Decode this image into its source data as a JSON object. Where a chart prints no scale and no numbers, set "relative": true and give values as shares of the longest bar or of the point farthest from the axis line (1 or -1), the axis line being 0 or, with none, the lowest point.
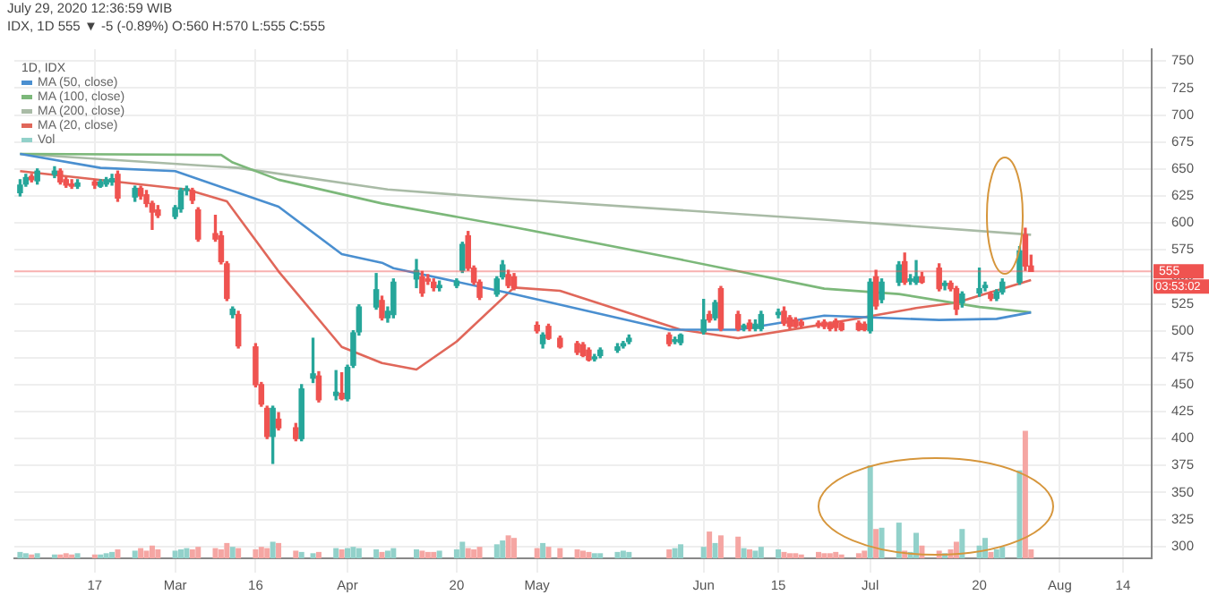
{
  "chart_data": [
    {
      "type": "candlestick",
      "title": "July 29, 2020 12:36:59 WIB",
      "subtitle": "IDX, 1D 555 ▼ -5 (-0.89%) O:560 H:570 L:555 C:555",
      "legend_title": "1D, IDX",
      "x": [
        "2020-02-04",
        "2020-02-05",
        "2020-02-06",
        "2020-02-07",
        "2020-02-10",
        "2020-02-11",
        "2020-02-12",
        "2020-02-13",
        "2020-02-14",
        "2020-02-17",
        "2020-02-18",
        "2020-02-19",
        "2020-02-20",
        "2020-02-21",
        "2020-02-24",
        "2020-02-25",
        "2020-02-26",
        "2020-02-27",
        "2020-02-28",
        "2020-03-02",
        "2020-03-03",
        "2020-03-04",
        "2020-03-05",
        "2020-03-06",
        "2020-03-09",
        "2020-03-10",
        "2020-03-11",
        "2020-03-12",
        "2020-03-13",
        "2020-03-16",
        "2020-03-17",
        "2020-03-18",
        "2020-03-19",
        "2020-03-20",
        "2020-03-23",
        "2020-03-24",
        "2020-03-26",
        "2020-03-27",
        "2020-03-30",
        "2020-03-31",
        "2020-04-01",
        "2020-04-02",
        "2020-04-03",
        "2020-04-06",
        "2020-04-07",
        "2020-04-08",
        "2020-04-09",
        "2020-04-13",
        "2020-04-14",
        "2020-04-15",
        "2020-04-16",
        "2020-04-17",
        "2020-04-20",
        "2020-04-21",
        "2020-04-22",
        "2020-04-23",
        "2020-04-24",
        "2020-04-27",
        "2020-04-28",
        "2020-04-29",
        "2020-04-30",
        "2020-05-04",
        "2020-05-05",
        "2020-05-06",
        "2020-05-08",
        "2020-05-11",
        "2020-05-12",
        "2020-05-13",
        "2020-05-14",
        "2020-05-15",
        "2020-05-18",
        "2020-05-19",
        "2020-05-20",
        "2020-05-27",
        "2020-05-28",
        "2020-05-29",
        "2020-06-02",
        "2020-06-03",
        "2020-06-04",
        "2020-06-05",
        "2020-06-08",
        "2020-06-09",
        "2020-06-10",
        "2020-06-11",
        "2020-06-12",
        "2020-06-15",
        "2020-06-16",
        "2020-06-17",
        "2020-06-18",
        "2020-06-19",
        "2020-06-22",
        "2020-06-23",
        "2020-06-24",
        "2020-06-25",
        "2020-06-26",
        "2020-06-29",
        "2020-06-30",
        "2020-07-01",
        "2020-07-02",
        "2020-07-03",
        "2020-07-06",
        "2020-07-07",
        "2020-07-08",
        "2020-07-09",
        "2020-07-10",
        "2020-07-13",
        "2020-07-14",
        "2020-07-15",
        "2020-07-16",
        "2020-07-17",
        "2020-07-20",
        "2020-07-21",
        "2020-07-22",
        "2020-07-23",
        "2020-07-24",
        "2020-07-27",
        "2020-07-28",
        "2020-07-29"
      ],
      "ohlc": [
        [
          628,
          640,
          625,
          635
        ],
        [
          636,
          645,
          634,
          642
        ],
        [
          643,
          645,
          638,
          640
        ],
        [
          639,
          650,
          636,
          648
        ],
        [
          645,
          652,
          642,
          648
        ],
        [
          648,
          650,
          636,
          638
        ],
        [
          640,
          642,
          633,
          635
        ],
        [
          636,
          640,
          632,
          634
        ],
        [
          634,
          640,
          632,
          637
        ],
        [
          638,
          640,
          632,
          635
        ],
        [
          634,
          640,
          633,
          638
        ],
        [
          636,
          642,
          634,
          640
        ],
        [
          638,
          645,
          635,
          641
        ],
        [
          645,
          648,
          620,
          623
        ],
        [
          624,
          634,
          620,
          632
        ],
        [
          632,
          634,
          622,
          625
        ],
        [
          626,
          630,
          615,
          618
        ],
        [
          618,
          620,
          594,
          610
        ],
        [
          612,
          616,
          605,
          607
        ],
        [
          606,
          616,
          604,
          614
        ],
        [
          613,
          632,
          610,
          630
        ],
        [
          630,
          634,
          626,
          631
        ],
        [
          630,
          632,
          618,
          621
        ],
        [
          612,
          614,
          583,
          585
        ],
        [
          590,
          607,
          583,
          585
        ],
        [
          588,
          592,
          562,
          564
        ],
        [
          562,
          564,
          528,
          530
        ],
        [
          515,
          522,
          512,
          520
        ],
        [
          515,
          518,
          484,
          486
        ],
        [
          485,
          488,
          448,
          450
        ],
        [
          450,
          452,
          430,
          432
        ],
        [
          428,
          430,
          400,
          402
        ],
        [
          402,
          430,
          377,
          428
        ],
        [
          418,
          424,
          408,
          410
        ],
        [
          410,
          414,
          398,
          400
        ],
        [
          400,
          450,
          398,
          446
        ],
        [
          456,
          493,
          452,
          460
        ],
        [
          458,
          462,
          434,
          436
        ],
        [
          440,
          463,
          436,
          443
        ],
        [
          442,
          461,
          436,
          437
        ],
        [
          437,
          468,
          435,
          466
        ],
        [
          468,
          500,
          466,
          498
        ],
        [
          499,
          524,
          496,
          522
        ],
        [
          522,
          553,
          520,
          538
        ],
        [
          528,
          532,
          510,
          512
        ],
        [
          512,
          522,
          508,
          518
        ],
        [
          515,
          548,
          512,
          545
        ],
        [
          548,
          566,
          540,
          556
        ],
        [
          550,
          555,
          532,
          535
        ],
        [
          548,
          552,
          543,
          546
        ],
        [
          545,
          548,
          537,
          540
        ],
        [
          540,
          546,
          537,
          542
        ],
        [
          542,
          548,
          540,
          546
        ],
        [
          556,
          582,
          554,
          580
        ],
        [
          588,
          592,
          556,
          558
        ],
        [
          558,
          560,
          543,
          545
        ],
        [
          545,
          547,
          529,
          531
        ],
        [
          534,
          550,
          532,
          548
        ],
        [
          550,
          565,
          548,
          561
        ],
        [
          552,
          556,
          540,
          542
        ],
        [
          550,
          553,
          538,
          540
        ],
        [
          505,
          508,
          498,
          500
        ],
        [
          488,
          498,
          484,
          496
        ],
        [
          504,
          506,
          492,
          493
        ],
        [
          493,
          495,
          484,
          485
        ],
        [
          488,
          490,
          478,
          480
        ],
        [
          487,
          489,
          476,
          477
        ],
        [
          482,
          484,
          472,
          473
        ],
        [
          474,
          478,
          472,
          475
        ],
        [
          477,
          484,
          475,
          482
        ],
        [
          482,
          488,
          480,
          485
        ],
        [
          486,
          490,
          484,
          488
        ],
        [
          490,
          496,
          488,
          493
        ],
        [
          496,
          498,
          486,
          488
        ],
        [
          490,
          494,
          488,
          491
        ],
        [
          489,
          497,
          487,
          496
        ],
        [
          499,
          529,
          497,
          510
        ],
        [
          515,
          518,
          508,
          510
        ],
        [
          512,
          528,
          510,
          526
        ],
        [
          539,
          541,
          500,
          502
        ],
        [
          515,
          518,
          500,
          502
        ],
        [
          503,
          506,
          500,
          504
        ],
        [
          507,
          510,
          500,
          502
        ],
        [
          502,
          510,
          500,
          506
        ],
        [
          502,
          518,
          500,
          515
        ],
        [
          515,
          520,
          512,
          517
        ],
        [
          518,
          522,
          505,
          507
        ],
        [
          512,
          514,
          502,
          504
        ],
        [
          510,
          512,
          503,
          504
        ],
        [
          508,
          510,
          503,
          505
        ],
        [
          507,
          509,
          503,
          505
        ],
        [
          508,
          510,
          502,
          504
        ],
        [
          506,
          508,
          500,
          502
        ],
        [
          509,
          511,
          500,
          503
        ],
        [
          507,
          509,
          500,
          501
        ],
        [
          507,
          509,
          500,
          501
        ],
        [
          506,
          508,
          500,
          501
        ],
        [
          500,
          548,
          498,
          545
        ],
        [
          550,
          556,
          520,
          523
        ],
        [
          529,
          548,
          526,
          545
        ],
        [
          545,
          564,
          542,
          561
        ],
        [
          564,
          572,
          543,
          545
        ],
        [
          546,
          552,
          543,
          548
        ],
        [
          545,
          565,
          543,
          550
        ],
        [
          550,
          554,
          544,
          545
        ],
        [
          558,
          562,
          537,
          539
        ],
        [
          542,
          546,
          538,
          544
        ],
        [
          544,
          546,
          537,
          539
        ],
        [
          539,
          541,
          515,
          520
        ],
        [
          526,
          536,
          522,
          534
        ],
        [
          535,
          558,
          532,
          539
        ],
        [
          540,
          545,
          537,
          542
        ],
        [
          534,
          536,
          528,
          530
        ],
        [
          530,
          538,
          528,
          536
        ],
        [
          536,
          548,
          534,
          545
        ],
        [
          545,
          578,
          543,
          574
        ],
        [
          589,
          595,
          556,
          560
        ],
        [
          560,
          570,
          555,
          555
        ]
      ],
      "colors": [
        "#26a69a",
        "#26a69a",
        "#ef5350",
        "#26a69a",
        "#26a69a",
        "#ef5350",
        "#ef5350",
        "#ef5350",
        "#26a69a",
        "#ef5350",
        "#26a69a",
        "#26a69a",
        "#26a69a",
        "#ef5350",
        "#26a69a",
        "#ef5350",
        "#ef5350",
        "#ef5350",
        "#ef5350",
        "#26a69a",
        "#26a69a",
        "#26a69a",
        "#ef5350",
        "#ef5350",
        "#ef5350",
        "#ef5350",
        "#ef5350",
        "#26a69a",
        "#ef5350",
        "#ef5350",
        "#ef5350",
        "#ef5350",
        "#26a69a",
        "#ef5350",
        "#ef5350",
        "#26a69a",
        "#26a69a",
        "#ef5350",
        "#26a69a",
        "#ef5350",
        "#26a69a",
        "#26a69a",
        "#26a69a",
        "#26a69a",
        "#ef5350",
        "#26a69a",
        "#26a69a",
        "#26a69a",
        "#ef5350",
        "#ef5350",
        "#ef5350",
        "#26a69a",
        "#26a69a",
        "#26a69a",
        "#ef5350",
        "#ef5350",
        "#ef5350",
        "#26a69a",
        "#26a69a",
        "#ef5350",
        "#ef5350",
        "#ef5350",
        "#26a69a",
        "#ef5350",
        "#ef5350",
        "#ef5350",
        "#ef5350",
        "#ef5350",
        "#26a69a",
        "#26a69a",
        "#26a69a",
        "#26a69a",
        "#26a69a",
        "#ef5350",
        "#26a69a",
        "#26a69a",
        "#26a69a",
        "#ef5350",
        "#26a69a",
        "#ef5350",
        "#ef5350",
        "#26a69a",
        "#ef5350",
        "#26a69a",
        "#26a69a",
        "#26a69a",
        "#ef5350",
        "#ef5350",
        "#ef5350",
        "#ef5350",
        "#ef5350",
        "#ef5350",
        "#ef5350",
        "#ef5350",
        "#ef5350",
        "#ef5350",
        "#ef5350",
        "#26a69a",
        "#ef5350",
        "#26a69a",
        "#26a69a",
        "#ef5350",
        "#26a69a",
        "#26a69a",
        "#ef5350",
        "#ef5350",
        "#26a69a",
        "#ef5350",
        "#ef5350",
        "#26a69a",
        "#26a69a",
        "#26a69a",
        "#ef5350",
        "#26a69a",
        "#26a69a",
        "#26a69a",
        "#ef5350",
        "#ef5350"
      ],
      "series": [
        {
          "type": "line",
          "name": "MA (50, close)",
          "color": "#4a8fd0",
          "x": [
            "2020-02-04",
            "2020-02-18",
            "2020-03-02",
            "2020-03-20",
            "2020-03-31",
            "2020-04-07",
            "2020-04-09",
            "2020-04-30",
            "2020-05-27",
            "2020-06-08",
            "2020-06-23",
            "2020-07-13",
            "2020-07-23",
            "2020-07-29"
          ],
          "values": [
            664,
            651,
            648,
            615,
            571,
            563,
            558,
            534,
            501,
            501,
            514,
            510,
            511,
            517
          ]
        },
        {
          "type": "line",
          "name": "MA (100, close)",
          "color": "#7cb87a",
          "x": [
            "2020-02-04",
            "2020-03-10",
            "2020-03-12",
            "2020-03-20",
            "2020-04-07",
            "2020-04-30",
            "2020-05-29",
            "2020-06-23",
            "2020-07-06",
            "2020-07-20",
            "2020-07-29"
          ],
          "values": [
            664,
            663,
            656,
            640,
            618,
            596,
            566,
            539,
            534,
            522,
            517
          ]
        },
        {
          "type": "line",
          "name": "MA (200, close)",
          "color": "#a9bba6",
          "x": [
            "2020-02-04",
            "2020-03-13",
            "2020-04-08",
            "2020-04-30",
            "2020-06-23",
            "2020-07-29"
          ],
          "values": [
            664,
            651,
            631,
            622,
            603,
            589
          ]
        },
        {
          "type": "line",
          "name": "MA (20, close)",
          "color": "#e0675a",
          "x": [
            "2020-02-04",
            "2020-03-04",
            "2020-03-11",
            "2020-03-20",
            "2020-03-31",
            "2020-04-07",
            "2020-04-13",
            "2020-04-20",
            "2020-04-30",
            "2020-05-08",
            "2020-05-29",
            "2020-06-08",
            "2020-06-23",
            "2020-07-09",
            "2020-07-16",
            "2020-07-29"
          ],
          "values": [
            648,
            631,
            620,
            555,
            485,
            470,
            464,
            490,
            540,
            537,
            501,
            493,
            506,
            521,
            526,
            547
          ]
        }
      ],
      "xlim": [
        "2020-02-03",
        "2020-08-19"
      ],
      "xticks": [
        {
          "value": "2020-02-17",
          "label": "17"
        },
        {
          "value": "2020-03-02",
          "label": "Mar"
        },
        {
          "value": "2020-03-16",
          "label": "16"
        },
        {
          "value": "2020-04-01",
          "label": "Apr"
        },
        {
          "value": "2020-04-20",
          "label": "20"
        },
        {
          "value": "2020-05-04",
          "label": "May"
        },
        {
          "value": "2020-06-02",
          "label": "Jun"
        },
        {
          "value": "2020-06-15",
          "label": "15"
        },
        {
          "value": "2020-07-01",
          "label": "Jul"
        },
        {
          "value": "2020-07-20",
          "label": "20"
        },
        {
          "value": "2020-08-03",
          "label": "Aug"
        },
        {
          "value": "2020-08-14",
          "label": "14"
        }
      ],
      "ylim": [
        289,
        761
      ],
      "yticks": [
        300,
        325,
        350,
        375,
        400,
        425,
        450,
        475,
        500,
        525,
        550,
        575,
        600,
        625,
        650,
        675,
        700,
        725,
        750
      ],
      "grid": true,
      "legend": "top left",
      "ref_lines": [
        {
          "axis": "y",
          "value": 555,
          "label": "555",
          "color": "#ef5350"
        }
      ],
      "annotations": [
        "03:53:02"
      ]
    },
    {
      "type": "bar",
      "relative": true,
      "legend": "top left",
      "x": [
        "2020-02-04",
        "2020-02-05",
        "2020-02-06",
        "2020-02-07",
        "2020-02-10",
        "2020-02-11",
        "2020-02-12",
        "2020-02-13",
        "2020-02-14",
        "2020-02-17",
        "2020-02-18",
        "2020-02-19",
        "2020-02-20",
        "2020-02-21",
        "2020-02-24",
        "2020-02-25",
        "2020-02-26",
        "2020-02-27",
        "2020-02-28",
        "2020-03-02",
        "2020-03-03",
        "2020-03-04",
        "2020-03-05",
        "2020-03-06",
        "2020-03-09",
        "2020-03-10",
        "2020-03-11",
        "2020-03-12",
        "2020-03-13",
        "2020-03-16",
        "2020-03-17",
        "2020-03-18",
        "2020-03-19",
        "2020-03-20",
        "2020-03-23",
        "2020-03-24",
        "2020-03-26",
        "2020-03-27",
        "2020-03-30",
        "2020-03-31",
        "2020-04-01",
        "2020-04-02",
        "2020-04-03",
        "2020-04-06",
        "2020-04-07",
        "2020-04-08",
        "2020-04-09",
        "2020-04-13",
        "2020-04-14",
        "2020-04-15",
        "2020-04-16",
        "2020-04-17",
        "2020-04-20",
        "2020-04-21",
        "2020-04-22",
        "2020-04-23",
        "2020-04-24",
        "2020-04-27",
        "2020-04-28",
        "2020-04-29",
        "2020-04-30",
        "2020-05-04",
        "2020-05-05",
        "2020-05-06",
        "2020-05-08",
        "2020-05-11",
        "2020-05-12",
        "2020-05-13",
        "2020-05-14",
        "2020-05-15",
        "2020-05-18",
        "2020-05-19",
        "2020-05-20",
        "2020-05-27",
        "2020-05-28",
        "2020-05-29",
        "2020-06-02",
        "2020-06-03",
        "2020-06-04",
        "2020-06-05",
        "2020-06-08",
        "2020-06-09",
        "2020-06-10",
        "2020-06-11",
        "2020-06-12",
        "2020-06-15",
        "2020-06-16",
        "2020-06-17",
        "2020-06-18",
        "2020-06-19",
        "2020-06-22",
        "2020-06-23",
        "2020-06-24",
        "2020-06-25",
        "2020-06-26",
        "2020-06-29",
        "2020-06-30",
        "2020-07-01",
        "2020-07-02",
        "2020-07-03",
        "2020-07-06",
        "2020-07-07",
        "2020-07-08",
        "2020-07-09",
        "2020-07-10",
        "2020-07-13",
        "2020-07-14",
        "2020-07-15",
        "2020-07-16",
        "2020-07-17",
        "2020-07-20",
        "2020-07-21",
        "2020-07-22",
        "2020-07-23",
        "2020-07-24",
        "2020-07-27",
        "2020-07-28",
        "2020-07-29"
      ],
      "xlim": [
        "2020-02-03",
        "2020-08-19"
      ],
      "series": [
        {
          "name": "Vol",
          "color": "#92d1ca",
          "values": [
            0.05,
            0.04,
            0.03,
            0.04,
            0.03,
            0.03,
            0.04,
            0.03,
            0.04,
            0.03,
            0.03,
            0.04,
            0.05,
            0.07,
            0.06,
            0.08,
            0.06,
            0.1,
            0.07,
            0.06,
            0.07,
            0.08,
            0.07,
            0.09,
            0.08,
            0.07,
            0.12,
            0.09,
            0.08,
            0.07,
            0.09,
            0.08,
            0.13,
            0.12,
            0.06,
            0.05,
            0.04,
            0.05,
            0.08,
            0.07,
            0.08,
            0.09,
            0.08,
            0.07,
            0.05,
            0.06,
            0.08,
            0.07,
            0.06,
            0.05,
            0.05,
            0.06,
            0.07,
            0.13,
            0.08,
            0.07,
            0.09,
            0.11,
            0.14,
            0.18,
            0.16,
            0.08,
            0.12,
            0.09,
            0.08,
            0.07,
            0.06,
            0.05,
            0.04,
            0.04,
            0.05,
            0.06,
            0.05,
            0.07,
            0.08,
            0.11,
            0.09,
            0.21,
            0.12,
            0.18,
            0.17,
            0.08,
            0.07,
            0.06,
            0.09,
            0.07,
            0.05,
            0.04,
            0.04,
            0.03,
            0.05,
            0.04,
            0.04,
            0.05,
            0.03,
            0.04,
            0.06,
            0.73,
            0.23,
            0.24,
            0.28,
            0.06,
            0.05,
            0.2,
            0.1,
            0.06,
            0.04,
            0.07,
            0.13,
            0.23,
            0.1,
            0.16,
            0.05,
            0.07,
            0.09,
            0.69,
            1,
            0.07
          ],
          "colors": [
            "#92d1ca",
            "#92d1ca",
            "#f5a6a3",
            "#92d1ca",
            "#92d1ca",
            "#f5a6a3",
            "#f5a6a3",
            "#f5a6a3",
            "#92d1ca",
            "#f5a6a3",
            "#92d1ca",
            "#92d1ca",
            "#92d1ca",
            "#f5a6a3",
            "#92d1ca",
            "#f5a6a3",
            "#f5a6a3",
            "#f5a6a3",
            "#f5a6a3",
            "#92d1ca",
            "#92d1ca",
            "#92d1ca",
            "#f5a6a3",
            "#f5a6a3",
            "#f5a6a3",
            "#f5a6a3",
            "#f5a6a3",
            "#92d1ca",
            "#f5a6a3",
            "#f5a6a3",
            "#f5a6a3",
            "#f5a6a3",
            "#92d1ca",
            "#f5a6a3",
            "#f5a6a3",
            "#92d1ca",
            "#92d1ca",
            "#f5a6a3",
            "#92d1ca",
            "#f5a6a3",
            "#92d1ca",
            "#92d1ca",
            "#92d1ca",
            "#92d1ca",
            "#f5a6a3",
            "#92d1ca",
            "#92d1ca",
            "#92d1ca",
            "#f5a6a3",
            "#f5a6a3",
            "#f5a6a3",
            "#92d1ca",
            "#92d1ca",
            "#92d1ca",
            "#f5a6a3",
            "#f5a6a3",
            "#f5a6a3",
            "#92d1ca",
            "#92d1ca",
            "#f5a6a3",
            "#f5a6a3",
            "#f5a6a3",
            "#92d1ca",
            "#f5a6a3",
            "#f5a6a3",
            "#f5a6a3",
            "#f5a6a3",
            "#f5a6a3",
            "#92d1ca",
            "#92d1ca",
            "#92d1ca",
            "#92d1ca",
            "#92d1ca",
            "#f5a6a3",
            "#92d1ca",
            "#92d1ca",
            "#92d1ca",
            "#f5a6a3",
            "#92d1ca",
            "#f5a6a3",
            "#f5a6a3",
            "#92d1ca",
            "#f5a6a3",
            "#92d1ca",
            "#92d1ca",
            "#92d1ca",
            "#f5a6a3",
            "#f5a6a3",
            "#f5a6a3",
            "#f5a6a3",
            "#f5a6a3",
            "#f5a6a3",
            "#f5a6a3",
            "#f5a6a3",
            "#f5a6a3",
            "#f5a6a3",
            "#f5a6a3",
            "#92d1ca",
            "#f5a6a3",
            "#92d1ca",
            "#92d1ca",
            "#f5a6a3",
            "#92d1ca",
            "#92d1ca",
            "#f5a6a3",
            "#f5a6a3",
            "#92d1ca",
            "#f5a6a3",
            "#f5a6a3",
            "#92d1ca",
            "#92d1ca",
            "#92d1ca",
            "#f5a6a3",
            "#92d1ca",
            "#92d1ca",
            "#92d1ca",
            "#f5a6a3",
            "#f5a6a3"
          ]
        }
      ]
    }
  ]
}
